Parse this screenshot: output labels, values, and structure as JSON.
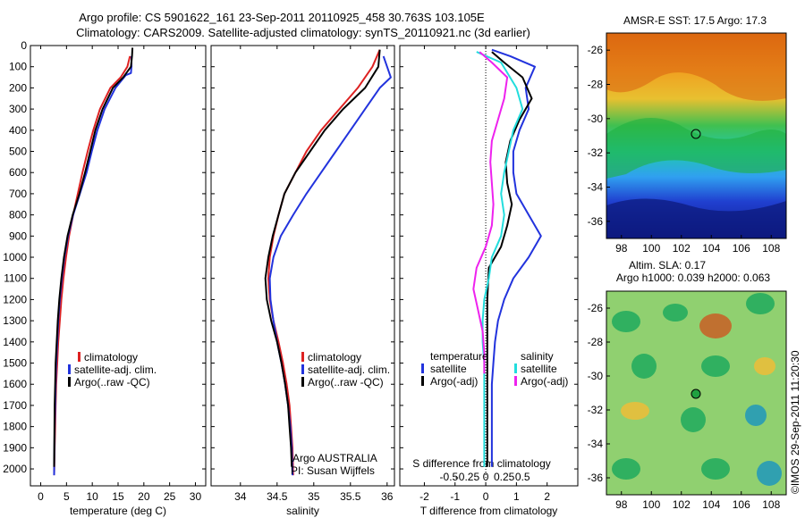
{
  "header": {
    "title_line1": "Argo profile: CS 5901622_161 23-Sep-2011 20110925_458 30.763S 103.105E",
    "title_line2": "Climatology: CARS2009. Satellite-adjusted climatology: synTS_20110921.nc (3d earlier)"
  },
  "colors": {
    "climatology": "#dd2222",
    "satellite": "#2233dd",
    "argo": "#000000",
    "sal_satellite": "#22dddd",
    "sal_argo": "#ee22ee"
  },
  "legend": {
    "climatology": "climatology",
    "satellite": "satellite-adj. clim.",
    "argo": "Argo(..raw -QC)",
    "diff_col1_title": "temperature",
    "diff_col2_title": "salinity",
    "diff_satellite": "satellite",
    "diff_argo": "Argo(-adj)"
  },
  "annotations": {
    "agency": "Argo AUSTRALIA",
    "pi": "PI: Susan Wijffels",
    "timestamp": "©IMOS 29-Sep-2011 11:20:30",
    "sst_title": "AMSR-E SST: 17.5 Argo: 17.3",
    "sla_title1": "Altim. SLA: 0.17",
    "sla_title2": "Argo h1000: 0.039 h2000: 0.063"
  },
  "chart_data": [
    {
      "type": "line",
      "xlabel": "temperature (deg C)",
      "ylabel": "",
      "xlim": [
        -2,
        32
      ],
      "ylim": [
        2080,
        0
      ],
      "xticks": [
        "0",
        "5",
        "10",
        "15",
        "20",
        "25",
        "30"
      ],
      "yticks": [
        "0",
        "100",
        "200",
        "300",
        "400",
        "500",
        "600",
        "700",
        "800",
        "900",
        "1000",
        "1100",
        "1200",
        "1300",
        "1400",
        "1500",
        "1600",
        "1700",
        "1800",
        "1900",
        "2000"
      ],
      "series": [
        {
          "name": "climatology",
          "x": [
            17.3,
            16.8,
            15.5,
            13.5,
            11.5,
            10.2,
            9.1,
            8.1,
            7.2,
            6.3,
            5.5,
            4.9,
            4.4,
            4.0,
            3.7,
            3.4,
            3.2,
            3.0,
            2.9,
            2.8,
            2.7,
            2.6
          ],
          "y": [
            50,
            100,
            150,
            200,
            300,
            400,
            500,
            600,
            700,
            800,
            900,
            1000,
            1100,
            1200,
            1300,
            1400,
            1500,
            1600,
            1700,
            1800,
            1900,
            2030
          ]
        },
        {
          "name": "satellite-adj. clim.",
          "x": [
            17.6,
            17.6,
            17.5,
            16.5,
            14.5,
            12.4,
            11.0,
            9.9,
            8.9,
            7.6,
            6.3,
            5.3,
            4.6,
            4.1,
            3.7,
            3.4,
            3.2,
            3.0,
            2.9,
            2.8,
            2.7,
            2.6
          ],
          "y": [
            50,
            100,
            130,
            140,
            200,
            300,
            400,
            500,
            600,
            700,
            800,
            900,
            1000,
            1100,
            1200,
            1300,
            1400,
            1500,
            1600,
            1700,
            1800,
            2030
          ]
        },
        {
          "name": "Argo(..raw -QC)",
          "x": [
            17.8,
            17.7,
            17.5,
            16.0,
            14.0,
            12.0,
            10.6,
            9.6,
            8.6,
            7.5,
            6.2,
            5.2,
            4.5,
            4.0,
            3.6,
            3.3,
            3.1,
            2.9,
            2.8,
            2.7,
            2.6
          ],
          "y": [
            10,
            50,
            100,
            150,
            200,
            300,
            400,
            500,
            600,
            700,
            800,
            900,
            1000,
            1100,
            1200,
            1300,
            1400,
            1500,
            1600,
            1700,
            1990
          ]
        }
      ]
    },
    {
      "type": "line",
      "xlabel": "salinity",
      "ylabel": "",
      "xlim": [
        33.6,
        36.1
      ],
      "ylim": [
        2080,
        0
      ],
      "xticks": [
        "34",
        "34.5",
        "35",
        "35.5",
        "36"
      ],
      "series": [
        {
          "name": "climatology",
          "x": [
            35.9,
            35.8,
            35.6,
            35.35,
            35.1,
            34.9,
            34.75,
            34.6,
            34.52,
            34.45,
            34.4,
            34.38,
            34.4,
            34.45,
            34.52,
            34.58,
            34.63,
            34.67,
            34.69,
            34.71,
            34.72
          ],
          "y": [
            20,
            100,
            200,
            300,
            400,
            500,
            600,
            700,
            800,
            900,
            1000,
            1100,
            1200,
            1300,
            1400,
            1500,
            1600,
            1700,
            1800,
            1900,
            2030
          ]
        },
        {
          "name": "satellite-adj. clim.",
          "x": [
            35.95,
            36.05,
            35.9,
            35.7,
            35.5,
            35.3,
            35.1,
            34.9,
            34.72,
            34.55,
            34.45,
            34.4,
            34.41,
            34.45,
            34.5,
            34.56,
            34.61,
            34.65,
            34.68,
            34.7,
            34.71
          ],
          "y": [
            50,
            150,
            200,
            300,
            400,
            500,
            600,
            700,
            800,
            900,
            1000,
            1100,
            1200,
            1300,
            1400,
            1500,
            1600,
            1700,
            1800,
            1900,
            2030
          ]
        },
        {
          "name": "Argo(..raw -QC)",
          "x": [
            35.9,
            35.88,
            35.7,
            35.4,
            35.15,
            34.95,
            34.75,
            34.6,
            34.52,
            34.44,
            34.38,
            34.34,
            34.36,
            34.42,
            34.5,
            34.56,
            34.61,
            34.65,
            34.67,
            34.69,
            34.7
          ],
          "y": [
            20,
            100,
            200,
            300,
            400,
            500,
            600,
            700,
            800,
            900,
            1000,
            1100,
            1200,
            1300,
            1400,
            1500,
            1600,
            1700,
            1800,
            1900,
            1990
          ]
        }
      ]
    },
    {
      "type": "line",
      "xlabel": "T difference from climatology",
      "xlabel_top": "S difference from climatology",
      "ylabel": "",
      "xlim": [
        -2.8,
        3.0
      ],
      "ylim": [
        2080,
        0
      ],
      "xticks": [
        "-2",
        "-1",
        "0",
        "1",
        "2"
      ],
      "xticks_secondary": [
        "-0.5",
        "-0.25",
        "0",
        "0.25",
        "0.5"
      ],
      "series": [
        {
          "name": "temperature satellite",
          "x": [
            0.2,
            0.8,
            1.6,
            1.3,
            1.4,
            1.1,
            0.9,
            0.9,
            1.0,
            1.4,
            1.8,
            1.4,
            0.9,
            0.6,
            0.4,
            0.3,
            0.25,
            0.2,
            0.2,
            0.2,
            0.2
          ],
          "y": [
            20,
            50,
            100,
            200,
            300,
            400,
            500,
            600,
            700,
            800,
            900,
            1000,
            1100,
            1200,
            1300,
            1400,
            1500,
            1600,
            1700,
            1800,
            1990
          ]
        },
        {
          "name": "temperature Argo(-adj)",
          "x": [
            0.2,
            0.6,
            1.2,
            1.5,
            1.1,
            0.8,
            0.65,
            0.7,
            0.85,
            0.7,
            0.5,
            0.1,
            0.05,
            0.05,
            0.05,
            0.05,
            0.05,
            0.05,
            0.05,
            0.05
          ],
          "y": [
            30,
            80,
            150,
            250,
            350,
            450,
            550,
            650,
            750,
            850,
            950,
            1050,
            1200,
            1300,
            1400,
            1500,
            1600,
            1700,
            1800,
            1990
          ]
        },
        {
          "name": "salinity satellite",
          "x": [
            -0.3,
            0.5,
            1.0,
            1.2,
            0.9,
            0.75,
            0.6,
            0.5,
            0.6,
            0.5,
            0.2,
            0.1,
            -0.05,
            -0.1,
            -0.1,
            -0.05,
            -0.05,
            -0.05,
            -0.05,
            -0.05
          ],
          "y": [
            30,
            80,
            200,
            300,
            400,
            500,
            600,
            700,
            800,
            900,
            1000,
            1100,
            1200,
            1300,
            1400,
            1500,
            1600,
            1700,
            1800,
            1990
          ]
        },
        {
          "name": "salinity Argo(-adj)",
          "x": [
            -0.2,
            0.2,
            0.7,
            0.6,
            0.4,
            0.2,
            0.15,
            0.2,
            0.25,
            0.2,
            0.0,
            -0.3,
            -0.4,
            -0.25,
            -0.1,
            -0.05,
            -0.05
          ],
          "y": [
            30,
            80,
            150,
            250,
            350,
            450,
            550,
            650,
            750,
            850,
            950,
            1050,
            1150,
            1250,
            1350,
            1450,
            1550
          ]
        }
      ]
    },
    {
      "type": "heatmap",
      "title": "AMSR-E SST: 17.5 Argo: 17.3",
      "xlim": [
        97,
        109
      ],
      "ylim": [
        -37,
        -25
      ],
      "xticks": [
        "98",
        "100",
        "102",
        "104",
        "106",
        "108"
      ],
      "yticks": [
        "-26",
        "-28",
        "-30",
        "-32",
        "-34",
        "-36"
      ],
      "marker": {
        "lon": 103.105,
        "lat": -30.763
      }
    },
    {
      "type": "heatmap",
      "title": "Altim. SLA: 0.17",
      "xlim": [
        97,
        109
      ],
      "ylim": [
        -37,
        -25
      ],
      "xticks": [
        "98",
        "100",
        "102",
        "104",
        "106",
        "108"
      ],
      "yticks": [
        "-26",
        "-28",
        "-30",
        "-32",
        "-34",
        "-36"
      ],
      "marker": {
        "lon": 103.105,
        "lat": -30.763
      }
    }
  ]
}
